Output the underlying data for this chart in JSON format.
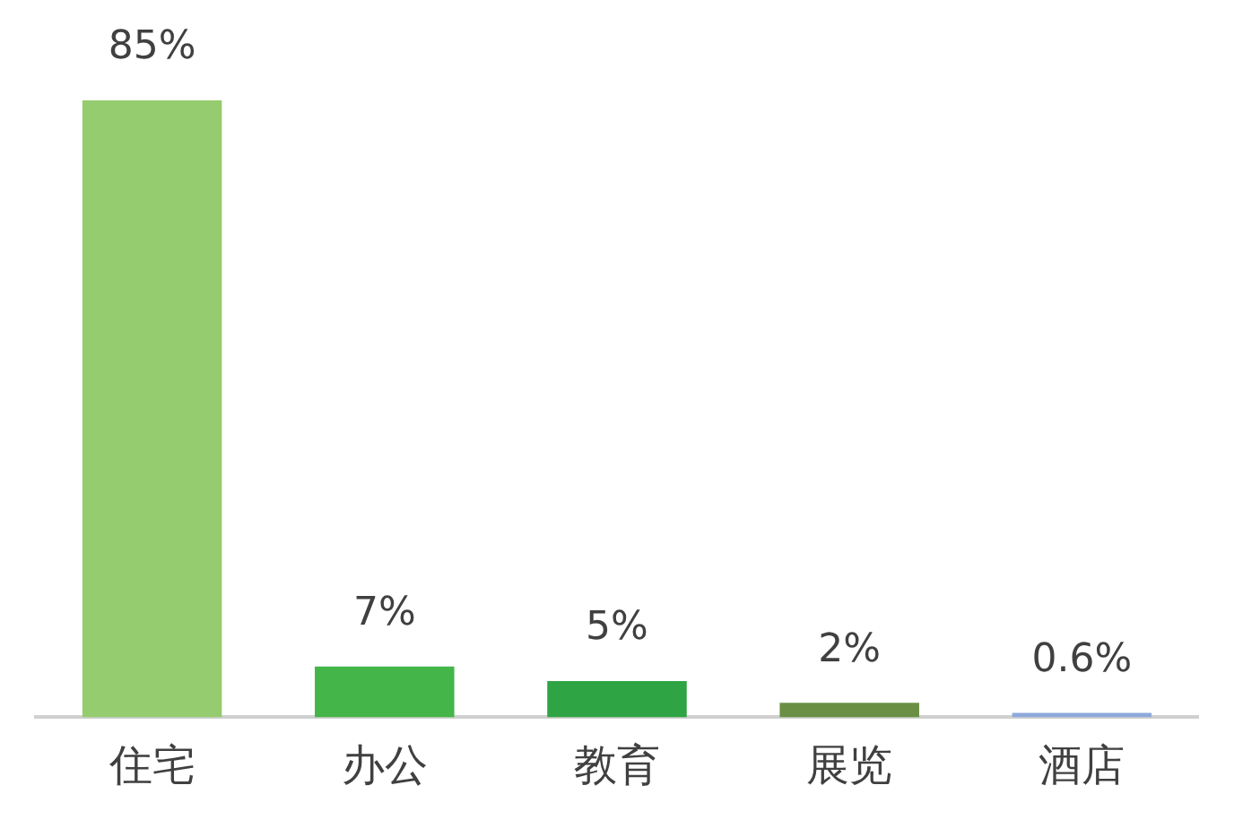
{
  "chart_data": {
    "type": "bar",
    "categories": [
      "住宅",
      "办公",
      "教育",
      "展览",
      "酒店"
    ],
    "values": [
      85,
      7,
      5,
      2,
      0.6
    ],
    "colors": [
      "#95cc6f",
      "#44b549",
      "#2fa444",
      "#6a8f44",
      "#8eaadb"
    ],
    "value_labels": [
      "85%",
      "7%",
      "5%",
      "2%",
      "0.6%"
    ],
    "grid": false,
    "legend": false
  }
}
